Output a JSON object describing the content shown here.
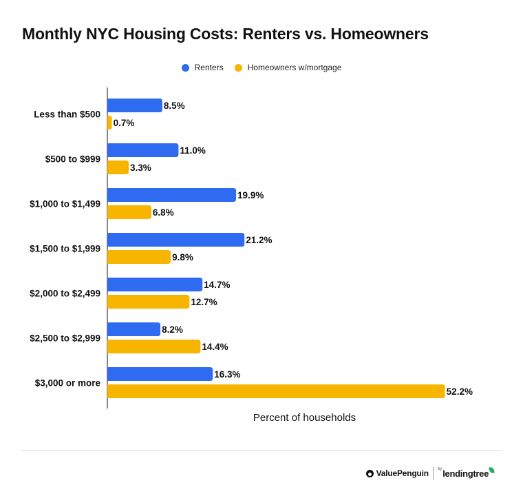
{
  "chart_data": {
    "type": "bar",
    "orientation": "horizontal",
    "title": "Monthly NYC Housing Costs: Renters vs. Homeowners",
    "xlabel": "Percent of households",
    "ylabel": "",
    "categories": [
      "Less than $500",
      "$500 to $999",
      "$1,000 to $1,499",
      "$1,500 to $1,999",
      "$2,000 to $2,499",
      "$2,500 to $2,999",
      "$3,000 or more"
    ],
    "series": [
      {
        "name": "Renters",
        "color": "#2f6bf0",
        "values": [
          8.5,
          11.0,
          19.9,
          21.2,
          14.7,
          8.2,
          16.3
        ],
        "labels": [
          "8.5%",
          "11.0%",
          "19.9%",
          "21.2%",
          "14.7%",
          "8.2%",
          "16.3%"
        ]
      },
      {
        "name": "Homeowners w/mortgage",
        "color": "#f7b500",
        "values": [
          0.7,
          3.3,
          6.8,
          9.8,
          12.7,
          14.4,
          52.2
        ],
        "labels": [
          "0.7%",
          "3.3%",
          "6.8%",
          "9.8%",
          "12.7%",
          "14.4%",
          "52.2%"
        ]
      }
    ],
    "xlim": [
      0,
      55
    ],
    "grid": false,
    "legend_position": "top-center"
  },
  "footer": {
    "brand": "ValuePenguin",
    "by": "by",
    "partner": "lendingtree",
    "icon_left": "penguin-logo-icon",
    "icon_right": "leaf-logo-icon"
  }
}
